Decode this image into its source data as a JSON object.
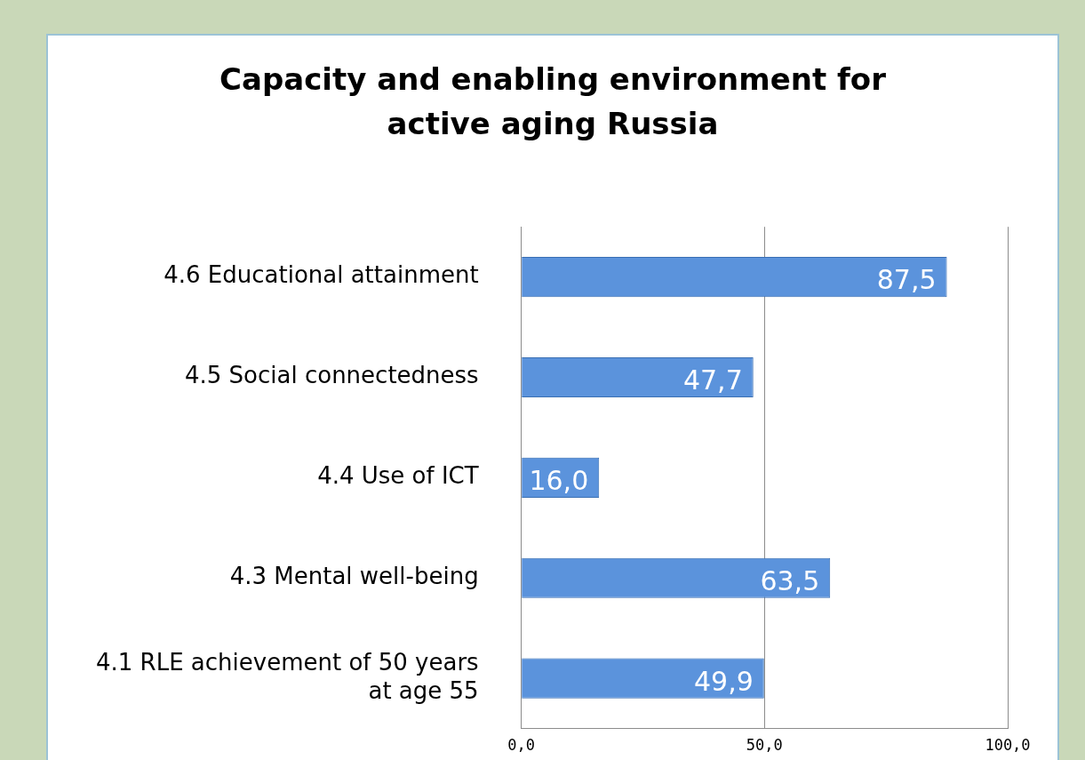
{
  "chart_data": {
    "type": "bar",
    "orientation": "horizontal",
    "title": "Capacity and enabling environment for active aging Russia",
    "categories": [
      "4.6 Educational attainment",
      "4.5 Social connectedness",
      "4.4 Use of ICT",
      "4.3 Mental well-being",
      "4.1 RLE achievement of 50 years at age 55"
    ],
    "values": [
      87.5,
      47.7,
      16.0,
      63.5,
      49.9
    ],
    "value_labels": [
      "87,5",
      "47,7",
      "16,0",
      "63,5",
      "49,9"
    ],
    "color": "#5b93dc",
    "xlim": [
      0,
      100
    ],
    "xticks": [
      {
        "value": 0,
        "label": "0,0"
      },
      {
        "value": 50,
        "label": "50,0"
      },
      {
        "value": 100,
        "label": "100,0"
      }
    ],
    "grid": "x"
  }
}
